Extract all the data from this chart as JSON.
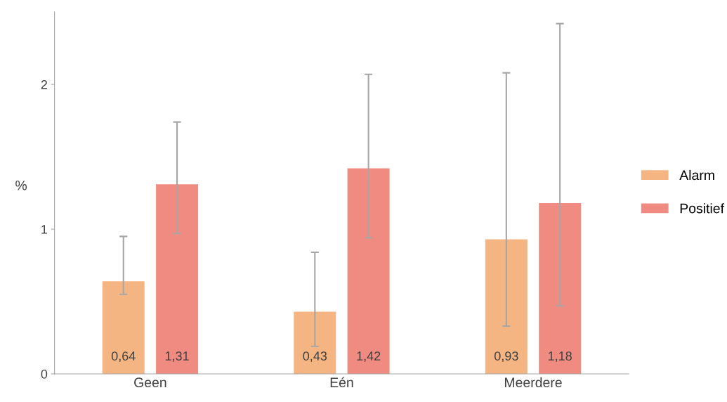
{
  "chart_data": {
    "type": "bar",
    "ylabel": "%",
    "categories": [
      "Geen",
      "Eén",
      "Meerdere"
    ],
    "series": [
      {
        "name": "Alarm",
        "color": "#f5b583",
        "values": [
          0.64,
          0.43,
          0.93
        ],
        "value_labels": [
          "0,64",
          "0,43",
          "0,93"
        ],
        "errors": [
          [
            0.55,
            0.95
          ],
          [
            0.19,
            0.84
          ],
          [
            0.33,
            2.08
          ]
        ]
      },
      {
        "name": "Positief",
        "color": "#ef8b80",
        "values": [
          1.31,
          1.42,
          1.18
        ],
        "value_labels": [
          "1,31",
          "1,42",
          "1,18"
        ],
        "errors": [
          [
            0.97,
            1.74
          ],
          [
            0.94,
            2.07
          ],
          [
            0.47,
            2.42
          ]
        ]
      }
    ],
    "ylim": [
      0,
      2.5
    ],
    "yticks": [
      0,
      1,
      2
    ],
    "grid": false,
    "legend": "right"
  }
}
